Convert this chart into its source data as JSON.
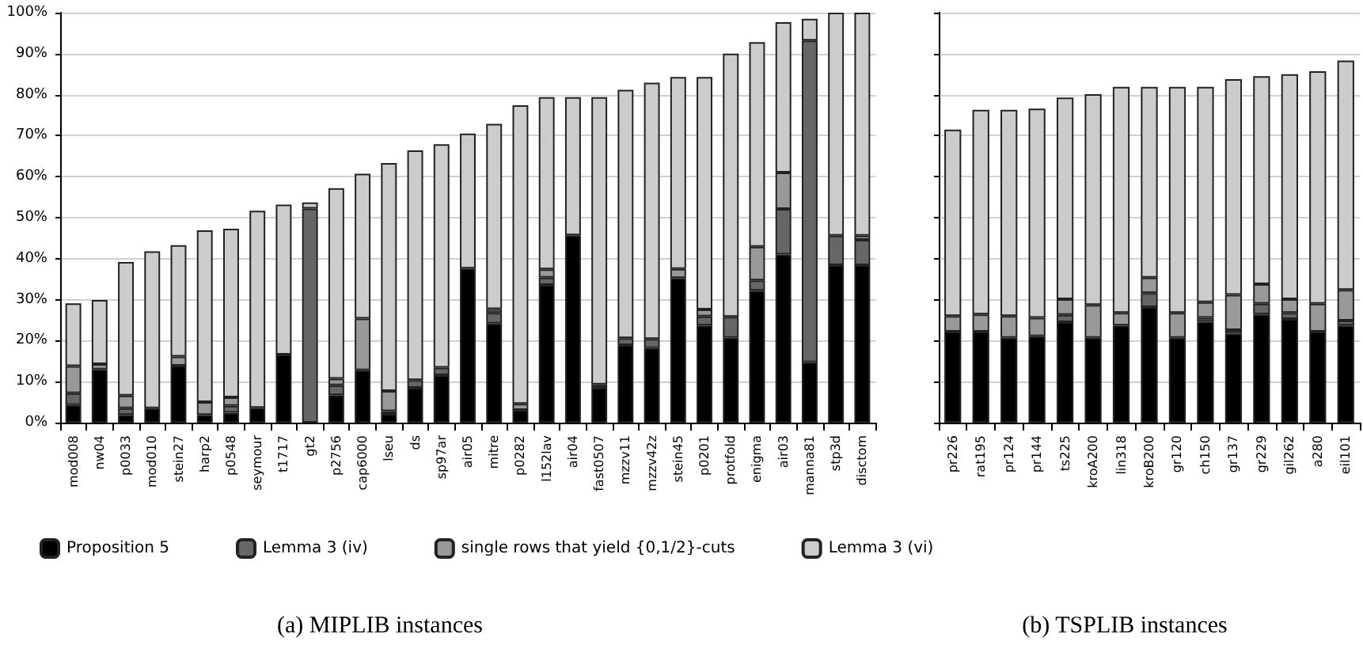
{
  "chart_data": [
    {
      "type": "bar",
      "title": "(a) MIPLIB instances",
      "stacked": true,
      "legend": "bottom",
      "grid": "y",
      "categories": [
        "mod008",
        "nw04",
        "p0033",
        "mod010",
        "stein27",
        "harp2",
        "p0548",
        "seymour",
        "t1717",
        "gt2",
        "p2756",
        "cap6000",
        "lseu",
        "ds",
        "sp97ar",
        "air05",
        "mitre",
        "p0282",
        "l152lav",
        "air04",
        "fast0507",
        "mzzv11",
        "mzzv42z",
        "stein45",
        "p0201",
        "protfold",
        "enigma",
        "air03",
        "manna81",
        "stp3d",
        "disctom"
      ],
      "ylim": [
        0,
        100
      ],
      "yticks": [
        {
          "value": 0,
          "label": "0%"
        },
        {
          "value": 10,
          "label": "10%"
        },
        {
          "value": 20,
          "label": "20%"
        },
        {
          "value": 30,
          "label": "30%"
        },
        {
          "value": 40,
          "label": "40%"
        },
        {
          "value": 50,
          "label": "50%"
        },
        {
          "value": 60,
          "label": "60%"
        },
        {
          "value": 70,
          "label": "70%"
        },
        {
          "value": 80,
          "label": "80%"
        },
        {
          "value": 90,
          "label": "90%"
        },
        {
          "value": 100,
          "label": "100%"
        }
      ],
      "series": [
        {
          "name": "Proposition 5",
          "color": "#000000",
          "values": [
            4.3,
            13,
            1.9,
            3.5,
            13.9,
            1.9,
            2.4,
            3.6,
            16.6,
            0,
            6.7,
            12.8,
            2.1,
            8.5,
            11.6,
            37.6,
            24.2,
            3.1,
            33.6,
            45.7,
            8.5,
            18.9,
            18.2,
            35.3,
            23.7,
            20.7,
            32.2,
            41.0,
            14.7,
            38.4,
            38.4
          ]
        },
        {
          "name": "Lemma 3 (iv)",
          "color": "#666666",
          "values": [
            2.9,
            0,
            1.6,
            0,
            0,
            0,
            1.7,
            0,
            0,
            52.2,
            2.4,
            0,
            0.7,
            1.9,
            1.8,
            0,
            2.6,
            0,
            1.8,
            0,
            0.8,
            1.7,
            2.2,
            0,
            2.2,
            5.1,
            2.5,
            11.1,
            78.5,
            7.2,
            6.2
          ]
        },
        {
          "name": "single rows that yield {0,1/2}-cuts",
          "color": "#999999",
          "values": [
            6.6,
            1.3,
            3.1,
            null,
            2.2,
            3.1,
            2.1,
            0,
            0,
            0,
            1.6,
            12.6,
            4.9,
            0,
            null,
            0,
            0.9,
            1.5,
            2.0,
            0,
            null,
            0,
            0,
            2.2,
            1.7,
            0,
            8.2,
            8.9,
            0,
            0,
            1.0
          ]
        },
        {
          "name": "Lemma 3 (vi)",
          "color": "#cccccc",
          "values": [
            15.3,
            15.6,
            32.6,
            38.3,
            27.2,
            41.9,
            41.1,
            48.1,
            36.6,
            1.5,
            46.5,
            35.3,
            55.6,
            56.0,
            54.5,
            32.9,
            45.2,
            72.8,
            42.0,
            33.7,
            70.1,
            60.6,
            62.5,
            46.8,
            56.7,
            64.2,
            49.9,
            36.7,
            5.3,
            54.4,
            54.4
          ]
        }
      ]
    },
    {
      "type": "bar",
      "title": "(b) TSPLIB instances",
      "stacked": true,
      "grid": "y",
      "tick_labels": "x",
      "categories": [
        "pr226",
        "rat195",
        "pr124",
        "pr144",
        "ts225",
        "kroA200",
        "lin318",
        "kroB200",
        "gr120",
        "ch150",
        "gr137",
        "gr229",
        "gil262",
        "a280",
        "eil101"
      ],
      "ylim": [
        0,
        100
      ],
      "yticks": [
        0,
        10,
        20,
        30,
        40,
        50,
        60,
        70,
        80,
        90,
        100
      ],
      "series": [
        {
          "color": "#000000",
          "values": [
            22.2,
            22.2,
            20.7,
            21.1,
            24.5,
            20.7,
            23.7,
            28.2,
            20.7,
            24.6,
            21.7,
            26.4,
            25.3,
            22.2,
            23.7
          ]
        },
        {
          "color": "#666666",
          "values": [
            0,
            0,
            0,
            0,
            1.8,
            0,
            0,
            3.4,
            0,
            1.0,
            0.9,
            2.6,
            1.5,
            0,
            1.2
          ]
        },
        {
          "color": "#999999",
          "values": [
            3.8,
            4.2,
            5.3,
            4.5,
            3.8,
            8.0,
            3.1,
            3.8,
            6.1,
            3.8,
            8.6,
            4.8,
            3.3,
            6.8,
            7.5
          ]
        },
        {
          "color": "#cccccc",
          "values": [
            45.5,
            49.9,
            50.3,
            51.0,
            49.2,
            51.4,
            55.1,
            46.5,
            55.1,
            52.5,
            52.6,
            50.7,
            54.9,
            56.7,
            55.9
          ]
        }
      ]
    }
  ]
}
